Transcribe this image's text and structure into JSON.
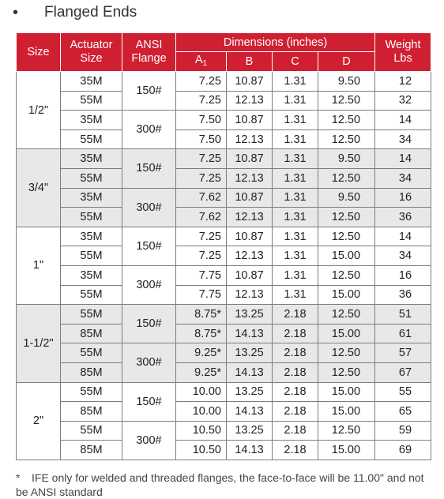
{
  "heading": {
    "bullet": "•",
    "text": "Flanged Ends"
  },
  "table": {
    "headers": {
      "size": "Size",
      "actuator_size": "Actuator Size",
      "ansi_flange": "ANSI Flange",
      "dimensions": "Dimensions (inches)",
      "weight": "Weight Lbs",
      "col_a": "A",
      "col_a_sub": "1",
      "col_b": "B",
      "col_c": "C",
      "col_d": "D"
    },
    "groups": [
      {
        "size": "1/2\"",
        "flanges": [
          {
            "flange": "150#",
            "rows": [
              {
                "actuator": "35M",
                "a": "7.25",
                "b": "10.87",
                "c": "1.31",
                "d": "9.50",
                "weight": "12"
              },
              {
                "actuator": "55M",
                "a": "7.25",
                "b": "12.13",
                "c": "1.31",
                "d": "12.50",
                "weight": "32"
              }
            ]
          },
          {
            "flange": "300#",
            "rows": [
              {
                "actuator": "35M",
                "a": "7.50",
                "b": "10.87",
                "c": "1.31",
                "d": "12.50",
                "weight": "14"
              },
              {
                "actuator": "55M",
                "a": "7.50",
                "b": "12.13",
                "c": "1.31",
                "d": "12.50",
                "weight": "34"
              }
            ]
          }
        ]
      },
      {
        "size": "3/4\"",
        "flanges": [
          {
            "flange": "150#",
            "rows": [
              {
                "actuator": "35M",
                "a": "7.25",
                "b": "10.87",
                "c": "1.31",
                "d": "9.50",
                "weight": "14"
              },
              {
                "actuator": "55M",
                "a": "7.25",
                "b": "12.13",
                "c": "1.31",
                "d": "12.50",
                "weight": "34"
              }
            ]
          },
          {
            "flange": "300#",
            "rows": [
              {
                "actuator": "35M",
                "a": "7.62",
                "b": "10.87",
                "c": "1.31",
                "d": "9.50",
                "weight": "16"
              },
              {
                "actuator": "55M",
                "a": "7.62",
                "b": "12.13",
                "c": "1.31",
                "d": "12.50",
                "weight": "36"
              }
            ]
          }
        ]
      },
      {
        "size": "1\"",
        "flanges": [
          {
            "flange": "150#",
            "rows": [
              {
                "actuator": "35M",
                "a": "7.25",
                "b": "10.87",
                "c": "1.31",
                "d": "12.50",
                "weight": "14"
              },
              {
                "actuator": "55M",
                "a": "7.25",
                "b": "12.13",
                "c": "1.31",
                "d": "15.00",
                "weight": "34"
              }
            ]
          },
          {
            "flange": "300#",
            "rows": [
              {
                "actuator": "35M",
                "a": "7.75",
                "b": "10.87",
                "c": "1.31",
                "d": "12.50",
                "weight": "16"
              },
              {
                "actuator": "55M",
                "a": "7.75",
                "b": "12.13",
                "c": "1.31",
                "d": "15.00",
                "weight": "36"
              }
            ]
          }
        ]
      },
      {
        "size": "1-1/2\"",
        "flanges": [
          {
            "flange": "150#",
            "rows": [
              {
                "actuator": "55M",
                "a": "8.75*",
                "b": "13.25",
                "c": "2.18",
                "d": "12.50",
                "weight": "51"
              },
              {
                "actuator": "85M",
                "a": "8.75*",
                "b": "14.13",
                "c": "2.18",
                "d": "15.00",
                "weight": "61"
              }
            ]
          },
          {
            "flange": "300#",
            "rows": [
              {
                "actuator": "55M",
                "a": "9.25*",
                "b": "13.25",
                "c": "2.18",
                "d": "12.50",
                "weight": "57"
              },
              {
                "actuator": "85M",
                "a": "9.25*",
                "b": "14.13",
                "c": "2.18",
                "d": "12.50",
                "weight": "67"
              }
            ]
          }
        ]
      },
      {
        "size": "2\"",
        "flanges": [
          {
            "flange": "150#",
            "rows": [
              {
                "actuator": "55M",
                "a": "10.00",
                "b": "13.25",
                "c": "2.18",
                "d": "15.00",
                "weight": "55"
              },
              {
                "actuator": "85M",
                "a": "10.00",
                "b": "14.13",
                "c": "2.18",
                "d": "15.00",
                "weight": "65"
              }
            ]
          },
          {
            "flange": "300#",
            "rows": [
              {
                "actuator": "55M",
                "a": "10.50",
                "b": "13.25",
                "c": "2.18",
                "d": "12.50",
                "weight": "59"
              },
              {
                "actuator": "85M",
                "a": "10.50",
                "b": "14.13",
                "c": "2.18",
                "d": "15.00",
                "weight": "69"
              }
            ]
          }
        ]
      }
    ]
  },
  "footnote": {
    "marker": "*",
    "text": "IFE only for welded and threaded flanges, the face-to-face will be 11.00\" and not be ANSI standard"
  },
  "colors": {
    "header_bg": "#d11f32",
    "band_gray": "#e8e8e9"
  }
}
